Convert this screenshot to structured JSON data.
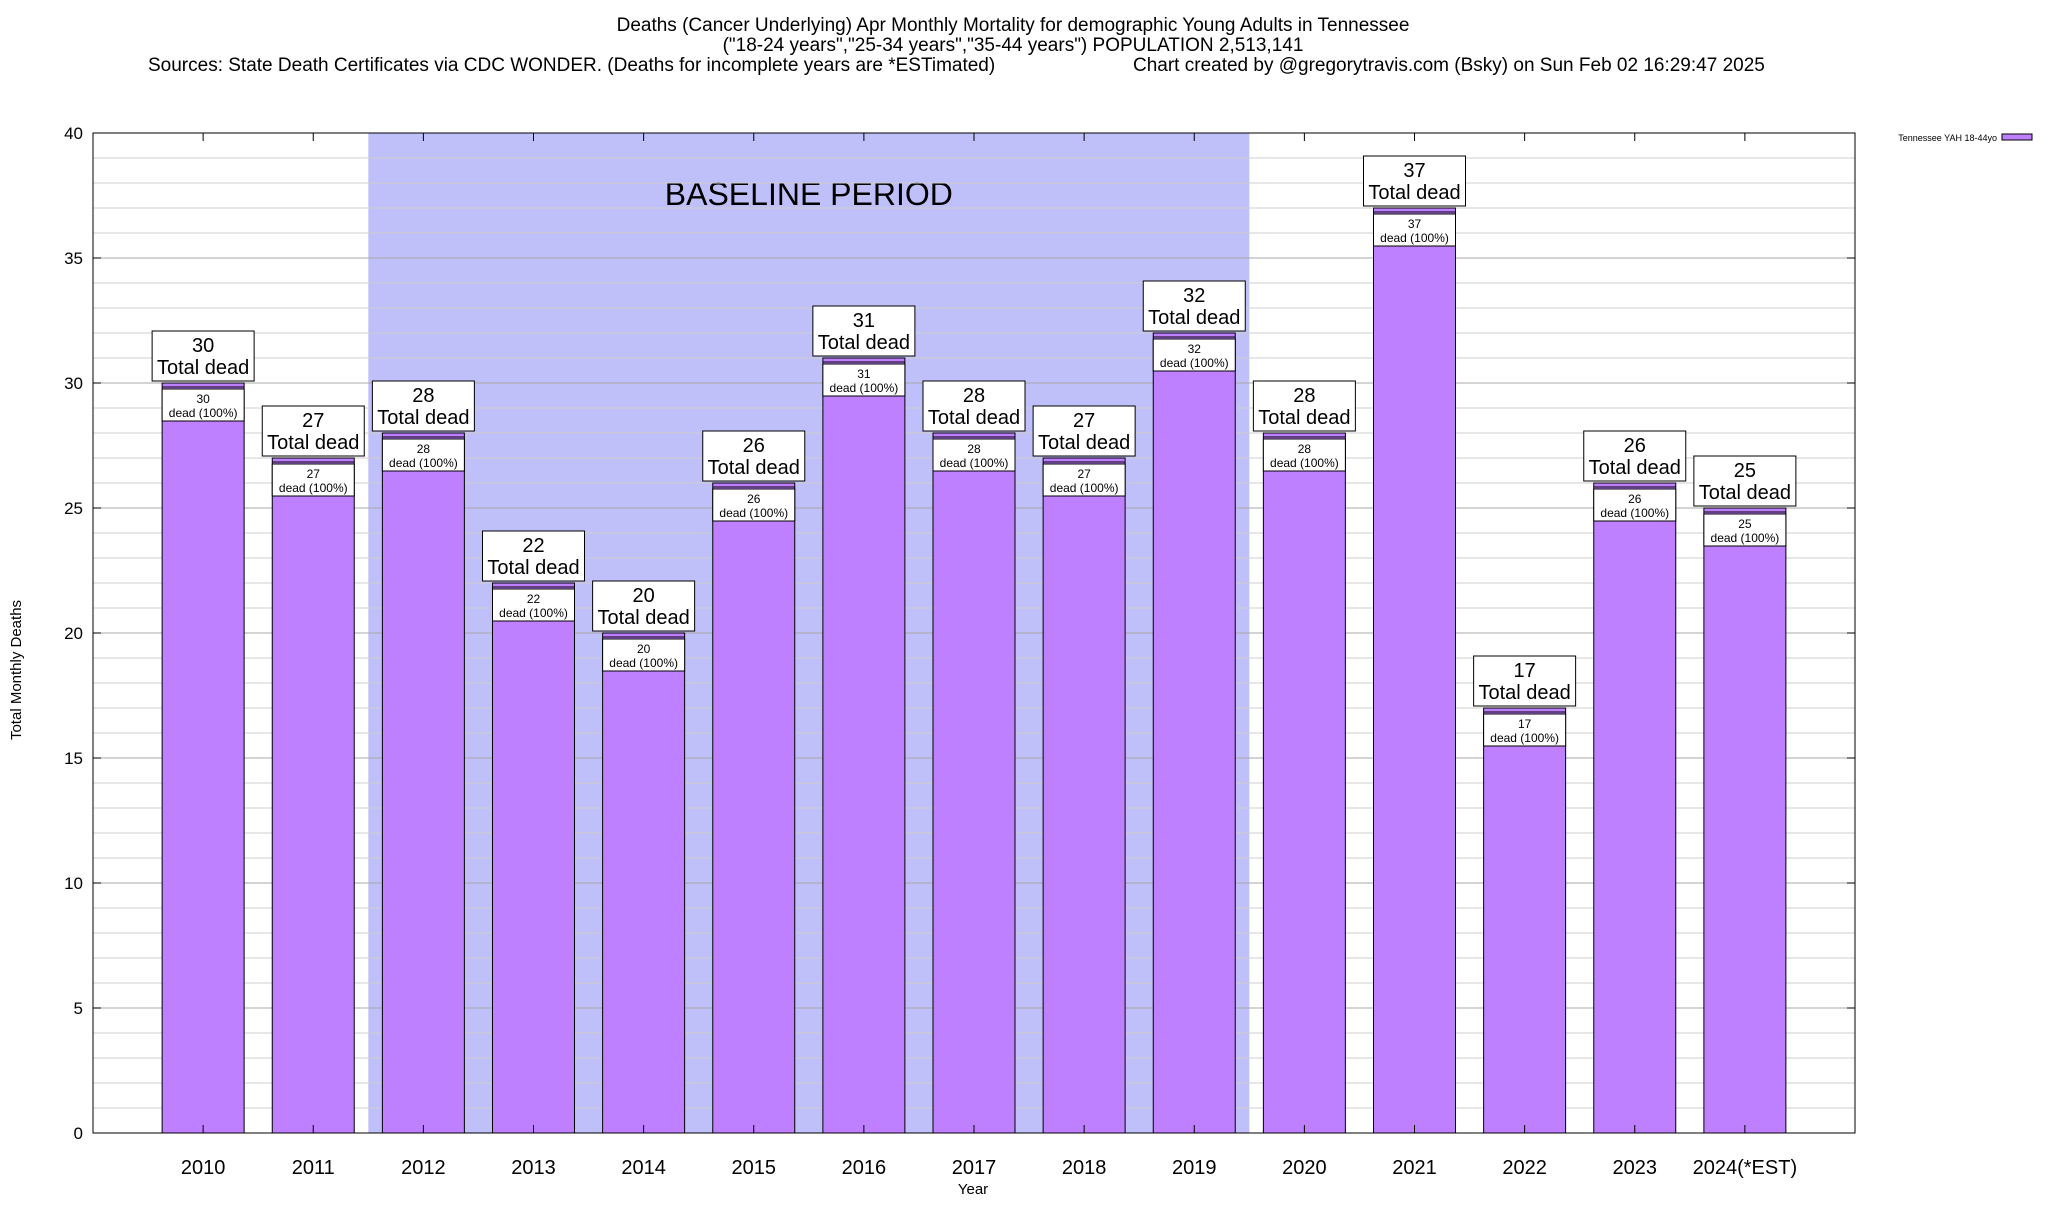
{
  "chart_data": {
    "type": "bar",
    "title": "Deaths (Cancer Underlying) Apr Monthly Mortality for demographic Young Adults in Tennessee",
    "subtitle": "(\"18-24 years\",\"25-34 years\",\"35-44 years\") POPULATION 2,513,141",
    "sources": "Sources: State Death Certificates via CDC WONDER. (Deaths for incomplete years are *ESTimated)",
    "credit": "Chart created by @gregorytravis.com (Bsky) on Sun Feb 02 16:29:47 2025",
    "xlabel": "Year",
    "ylabel": "Total Monthly Deaths",
    "ylim": [
      0,
      40
    ],
    "yticks": [
      0,
      5,
      10,
      15,
      20,
      25,
      30,
      35,
      40
    ],
    "grid": true,
    "legend_position": "top-right",
    "bar_color": "#bf80ff",
    "baseline_color": "#bfbffa",
    "categories": [
      "2010",
      "2011",
      "2012",
      "2013",
      "2014",
      "2015",
      "2016",
      "2017",
      "2018",
      "2019",
      "2020",
      "2021",
      "2022",
      "2023",
      "2024(*EST)"
    ],
    "series": [
      {
        "name": "Tennessee YAH 18-44yo",
        "values": [
          30,
          27,
          28,
          22,
          20,
          26,
          31,
          28,
          27,
          32,
          28,
          37,
          17,
          26,
          25
        ]
      }
    ],
    "baseline_period": {
      "label": "BASELINE PERIOD",
      "start": "2012",
      "end": "2019"
    },
    "annotations": {
      "total_label": "Total dead",
      "inner_label": "dead (100%)"
    }
  }
}
